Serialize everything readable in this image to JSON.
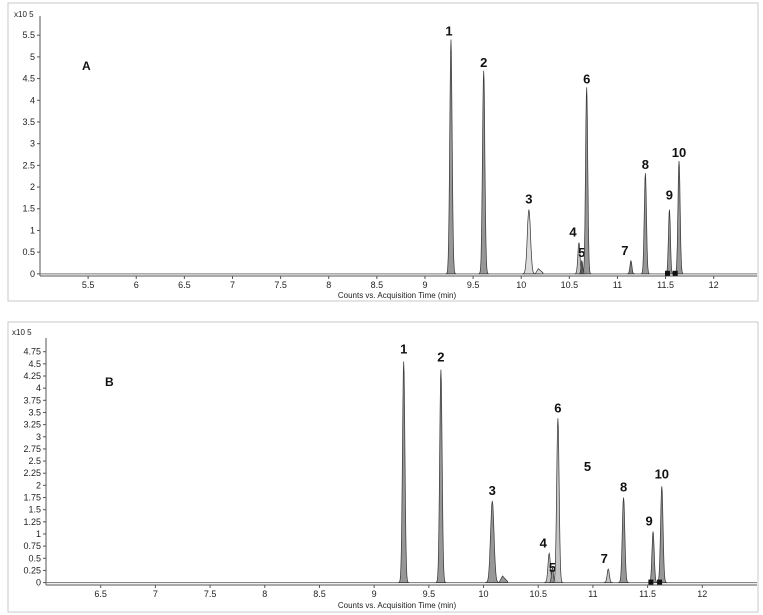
{
  "chart_data": [
    {
      "type": "line",
      "panel_label": "A",
      "y_multiplier": "x10 5",
      "xlabel": "Counts vs. Acquisition Time (min)",
      "ylabel": "",
      "xlim": [
        5.0,
        12.45
      ],
      "ylim": [
        -0.05,
        5.85
      ],
      "x_ticks": [
        "5.5",
        "6",
        "6.5",
        "7",
        "7.5",
        "8",
        "8.5",
        "9",
        "9.5",
        "10",
        "10.5",
        "11",
        "11.5",
        "12"
      ],
      "y_ticks": [
        "0",
        "0.5",
        "1",
        "1.5",
        "2",
        "2.5",
        "3",
        "3.5",
        "4",
        "4.5",
        "5",
        "5.5"
      ],
      "grid": false,
      "legend": "none",
      "markers": [
        11.52,
        11.6
      ],
      "series": [
        {
          "label": "1",
          "x": 9.27,
          "y": 5.4,
          "width": 0.022,
          "tail": 0.0,
          "color": "#8c8c8c",
          "label_dx": -2,
          "label_dy": -4
        },
        {
          "label": "2",
          "x": 9.61,
          "y": 4.68,
          "width": 0.022,
          "tail": 0.0,
          "color": "#8c8c8c",
          "label_dx": 0,
          "label_dy": -4
        },
        {
          "label": "3",
          "x": 10.08,
          "y": 1.48,
          "width": 0.03,
          "tail": 0.08,
          "color": "#d9d9d9",
          "label_dx": 0,
          "label_dy": -6
        },
        {
          "label": "4",
          "x": 10.6,
          "y": 0.72,
          "width": 0.02,
          "tail": 0.03,
          "color": "#bfbfbf",
          "label_dx": -6,
          "label_dy": -6
        },
        {
          "label": "5",
          "x": 10.63,
          "y": 0.3,
          "width": 0.015,
          "tail": 0.0,
          "color": "#555555",
          "label_dx": 0,
          "label_dy": -4
        },
        {
          "label": "6",
          "x": 10.68,
          "y": 4.3,
          "width": 0.02,
          "tail": 0.0,
          "color": "#8c8c8c",
          "label_dx": 0,
          "label_dy": -4
        },
        {
          "label": "7",
          "x": 11.14,
          "y": 0.3,
          "width": 0.018,
          "tail": 0.0,
          "color": "#777777",
          "label_dx": -6,
          "label_dy": -6
        },
        {
          "label": "8",
          "x": 11.29,
          "y": 2.32,
          "width": 0.02,
          "tail": 0.0,
          "color": "#8c8c8c",
          "label_dx": 0,
          "label_dy": -4
        },
        {
          "label": "9",
          "x": 11.54,
          "y": 1.48,
          "width": 0.018,
          "tail": 0.0,
          "color": "#8c8c8c",
          "label_dx": 0,
          "label_dy": -10
        },
        {
          "label": "10",
          "x": 11.64,
          "y": 2.6,
          "width": 0.02,
          "tail": 0.0,
          "color": "#8c8c8c",
          "label_dx": 0,
          "label_dy": -4
        }
      ]
    },
    {
      "type": "line",
      "panel_label": "B",
      "y_multiplier": "x10 5",
      "xlabel": "Counts vs. Acquisition Time (min)",
      "ylabel": "",
      "xlim": [
        6.0,
        12.5
      ],
      "ylim": [
        -0.05,
        4.95
      ],
      "x_ticks": [
        "6.5",
        "7",
        "7.5",
        "8",
        "8.5",
        "9",
        "9.5",
        "10",
        "10.5",
        "11",
        "11.5",
        "12"
      ],
      "y_ticks": [
        "0",
        "0.25",
        "0.5",
        "0.75",
        "1",
        "1.25",
        "1.5",
        "1.75",
        "2",
        "2.25",
        "2.5",
        "2.75",
        "3",
        "3.25",
        "3.5",
        "3.75",
        "4",
        "4.25",
        "4.5",
        "4.75"
      ],
      "grid": false,
      "legend": "none",
      "markers": [
        11.53,
        11.61
      ],
      "annotations": [
        {
          "text": "5",
          "x": 10.95,
          "y": 2.3
        }
      ],
      "series": [
        {
          "label": "1",
          "x": 9.27,
          "y": 4.55,
          "width": 0.02,
          "tail": 0.0,
          "color": "#8c8c8c",
          "label_dx": 0,
          "label_dy": -8
        },
        {
          "label": "2",
          "x": 9.61,
          "y": 4.38,
          "width": 0.02,
          "tail": 0.0,
          "color": "#8c8c8c",
          "label_dx": 0,
          "label_dy": -8
        },
        {
          "label": "3",
          "x": 10.08,
          "y": 1.68,
          "width": 0.028,
          "tail": 0.08,
          "color": "#8c8c8c",
          "label_dx": 0,
          "label_dy": -6
        },
        {
          "label": "4",
          "x": 10.6,
          "y": 0.6,
          "width": 0.02,
          "tail": 0.03,
          "color": "#bfbfbf",
          "label_dx": -6,
          "label_dy": -6
        },
        {
          "label": "5",
          "x": 10.63,
          "y": 0.3,
          "width": 0.015,
          "tail": 0.0,
          "color": "#8c8c8c",
          "label_dx": 0,
          "label_dy": 4
        },
        {
          "label": "6",
          "x": 10.68,
          "y": 3.38,
          "width": 0.02,
          "tail": 0.0,
          "color": "#bfbfbf",
          "label_dx": 0,
          "label_dy": -6
        },
        {
          "label": "7",
          "x": 11.14,
          "y": 0.28,
          "width": 0.018,
          "tail": 0.0,
          "color": "#bfbfbf",
          "label_dx": -4,
          "label_dy": -6
        },
        {
          "label": "8",
          "x": 11.28,
          "y": 1.75,
          "width": 0.02,
          "tail": 0.0,
          "color": "#8c8c8c",
          "label_dx": 0,
          "label_dy": -6
        },
        {
          "label": "9",
          "x": 11.55,
          "y": 1.05,
          "width": 0.018,
          "tail": 0.0,
          "color": "#8c8c8c",
          "label_dx": -4,
          "label_dy": -6
        },
        {
          "label": "10",
          "x": 11.63,
          "y": 1.98,
          "width": 0.02,
          "tail": 0.0,
          "color": "#8c8c8c",
          "label_dx": 0,
          "label_dy": -8
        }
      ]
    }
  ]
}
